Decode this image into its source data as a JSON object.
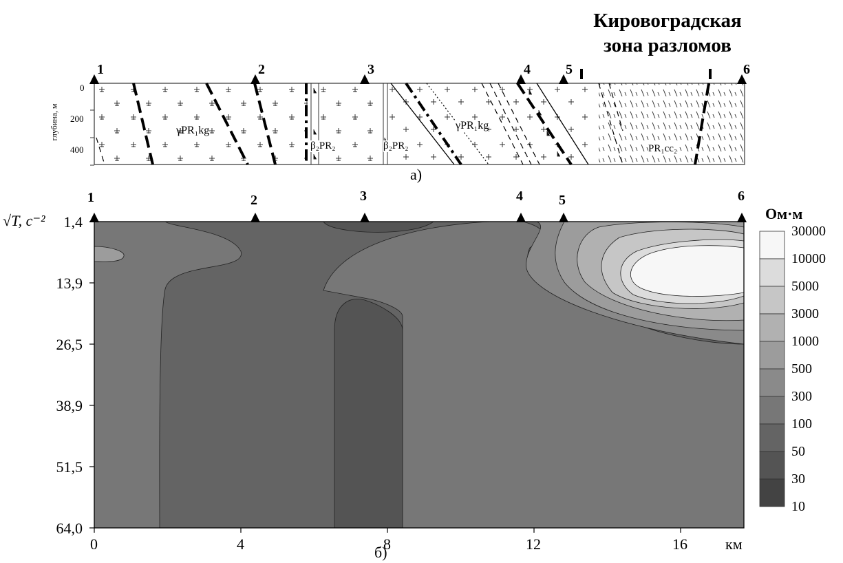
{
  "title_line1": "Кировоградская",
  "title_line2": "зона разломов",
  "stations": [
    "1",
    "2",
    "3",
    "4",
    "5",
    "6"
  ],
  "panel_a": {
    "label": "а)",
    "depth_axis_label": "глубина, м",
    "depth_ticks": [
      "0",
      "200",
      "400"
    ],
    "units": [
      {
        "id": "gamma-left",
        "text": "γPR₁kg"
      },
      {
        "id": "beta-1",
        "text": "β₂PR₂"
      },
      {
        "id": "beta-2",
        "text": "β₂PR₂"
      },
      {
        "id": "gamma-right",
        "text": "γPR₁kg"
      },
      {
        "id": "pr-cc",
        "text": "PR₁cc₂"
      }
    ]
  },
  "panel_b": {
    "label": "б)",
    "y_label": "√T, с⁻²",
    "y_ticks": [
      "1,4",
      "13,9",
      "26,5",
      "38,9",
      "51,5",
      "64,0"
    ],
    "x_ticks": [
      "0",
      "4",
      "8",
      "12",
      "16"
    ],
    "x_unit": "км",
    "legend_title": "Ом·м",
    "legend_levels": [
      "30000",
      "10000",
      "5000",
      "3000",
      "1000",
      "500",
      "300",
      "100",
      "50",
      "30",
      "10"
    ],
    "legend_colors": [
      "#f7f7f7",
      "#dcdcdc",
      "#c6c6c6",
      "#b1b1b1",
      "#9c9c9c",
      "#8a8a8a",
      "#777777",
      "#646464",
      "#545454",
      "#434343",
      "#333333"
    ]
  },
  "chart_data": {
    "type": "heatmap",
    "x_range_km": [
      0,
      17.6
    ],
    "x_unit": "км",
    "y_ticks": [
      1.4,
      13.9,
      26.5,
      38.9,
      51.5,
      64.0
    ],
    "y_label": "√T, с⁻²",
    "station_positions_km": [
      0,
      4.4,
      7.4,
      11.7,
      12.9,
      17.6
    ],
    "legend_levels_ohm_m": [
      30000,
      10000,
      5000,
      3000,
      1000,
      500,
      300,
      100,
      50,
      30,
      10
    ],
    "legend_title": "Ом·м"
  }
}
